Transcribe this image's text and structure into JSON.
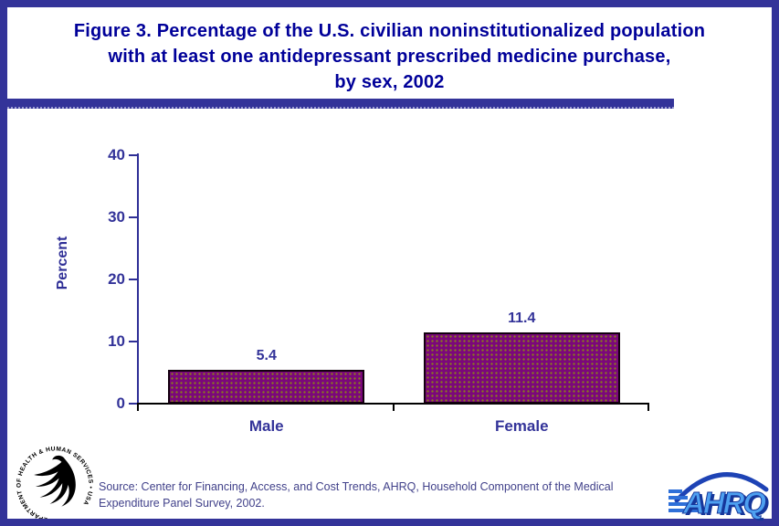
{
  "title_lines": [
    "Figure 3. Percentage of the U.S. civilian noninstitutionalized population",
    "with at least one antidepressant prescribed medicine purchase,",
    "by sex, 2002"
  ],
  "chart_data": {
    "type": "bar",
    "title": "Figure 3. Percentage of the U.S. civilian noninstitutionalized population with at least one antidepressant prescribed medicine purchase, by sex, 2002",
    "categories": [
      "Male",
      "Female"
    ],
    "values": [
      5.4,
      11.4
    ],
    "value_labels": [
      "5.4",
      "11.4"
    ],
    "xlabel": "",
    "ylabel": "Percent",
    "ylim": [
      0,
      40
    ],
    "yticks": [
      0,
      10,
      20,
      30,
      40
    ],
    "grid": false,
    "legend": "none",
    "bar_fill_color": "#7b077b",
    "bar_dot_color": "#8a7a1e",
    "bar_border_color": "#14000f"
  },
  "footer": {
    "source": "Source: Center for Financing, Access, and Cost Trends, AHRQ, Household Component of the Medical Expenditure Panel Survey, 2002.",
    "hhs_circle_text": "DEPARTMENT OF HEALTH & HUMAN SERVICES • USA",
    "ahrq_text": "AHRQ"
  },
  "colors": {
    "frame_navy": "#333399",
    "title_navy": "#000099",
    "axis_navy": "#2e2e96",
    "source_text": "#41418a",
    "ahrq_light_blue": "#4ea0f0",
    "ahrq_dark_blue": "#16379b"
  }
}
